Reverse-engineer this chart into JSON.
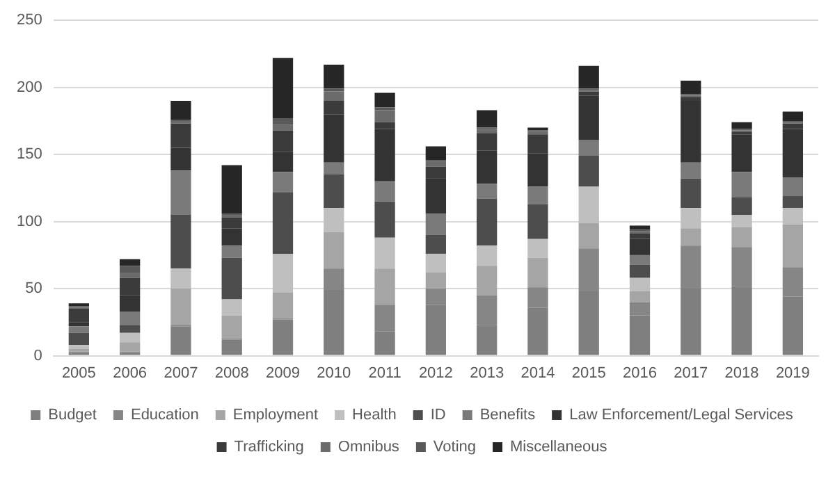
{
  "chart_data": {
    "type": "bar",
    "stacked": true,
    "grid": "y",
    "legend": "bottom",
    "categories": [
      "2005",
      "2006",
      "2007",
      "2008",
      "2009",
      "2010",
      "2011",
      "2012",
      "2013",
      "2014",
      "2015",
      "2016",
      "2017",
      "2018",
      "2019"
    ],
    "ylim": [
      0,
      250
    ],
    "yticks": [
      0,
      50,
      100,
      150,
      200,
      250
    ],
    "series": [
      {
        "name": "Budget",
        "color": "#7f7f7f",
        "values": [
          2,
          2,
          22,
          12,
          27,
          49,
          18,
          38,
          23,
          36,
          48,
          30,
          50,
          52,
          44
        ]
      },
      {
        "name": "Education",
        "color": "#868686",
        "values": [
          1,
          1,
          1,
          1,
          1,
          16,
          20,
          12,
          22,
          15,
          32,
          10,
          32,
          29,
          22
        ]
      },
      {
        "name": "Employment",
        "color": "#a5a5a5",
        "values": [
          2,
          7,
          27,
          17,
          19,
          27,
          27,
          12,
          22,
          22,
          19,
          8,
          13,
          15,
          32
        ]
      },
      {
        "name": "Health",
        "color": "#bfbfbf",
        "values": [
          3,
          7,
          15,
          12,
          29,
          18,
          23,
          14,
          15,
          14,
          27,
          10,
          15,
          9,
          12
        ]
      },
      {
        "name": "ID",
        "color": "#4d4d4d",
        "values": [
          9,
          6,
          40,
          31,
          46,
          25,
          27,
          14,
          35,
          26,
          23,
          10,
          22,
          13,
          9
        ]
      },
      {
        "name": "Benefits",
        "color": "#7a7a7a",
        "values": [
          5,
          10,
          33,
          9,
          15,
          9,
          15,
          16,
          11,
          13,
          12,
          7,
          12,
          19,
          14
        ]
      },
      {
        "name": "Law Enforcement/Legal Services",
        "color": "#333333",
        "values": [
          3,
          12,
          17,
          13,
          15,
          36,
          39,
          26,
          25,
          25,
          33,
          12,
          46,
          28,
          36
        ]
      },
      {
        "name": "Trafficking",
        "color": "#3b3b3b",
        "values": [
          10,
          13,
          18,
          8,
          16,
          10,
          5,
          9,
          13,
          14,
          3,
          4,
          3,
          2,
          4
        ]
      },
      {
        "name": "Omnibus",
        "color": "#6b6b6b",
        "values": [
          1,
          4,
          2,
          2,
          4,
          7,
          9,
          4,
          3,
          2,
          1,
          2,
          1,
          1,
          1
        ]
      },
      {
        "name": "Voting",
        "color": "#595959",
        "values": [
          1,
          5,
          1,
          1,
          5,
          2,
          2,
          1,
          1,
          1,
          1,
          1,
          1,
          1,
          1
        ]
      },
      {
        "name": "Miscellaneous",
        "color": "#262626",
        "values": [
          2,
          5,
          14,
          36,
          45,
          18,
          11,
          10,
          13,
          2,
          17,
          3,
          10,
          5,
          7
        ]
      }
    ]
  }
}
